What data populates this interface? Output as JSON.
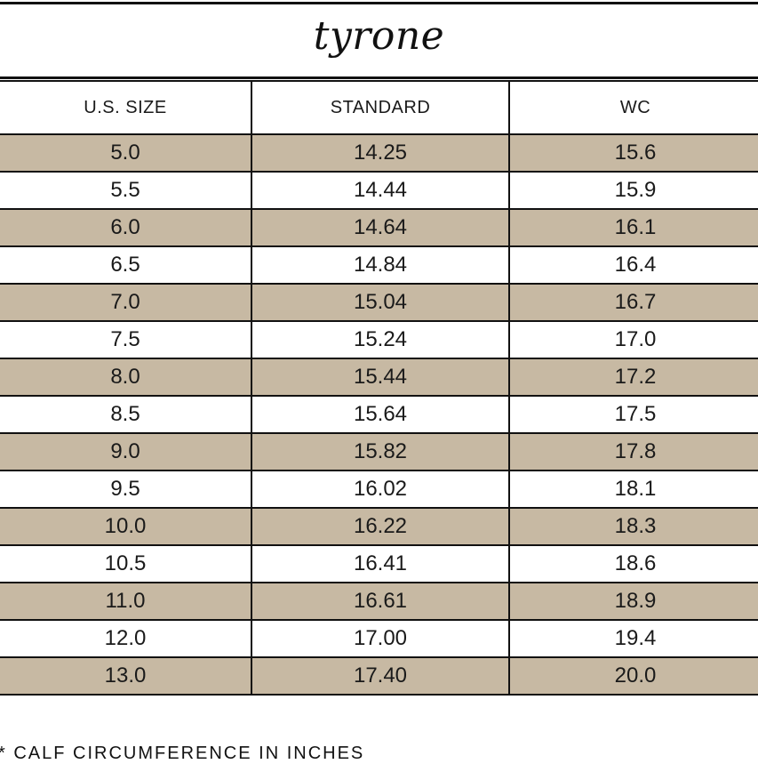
{
  "title": "tyrone",
  "headers": [
    "U.S. SIZE",
    "STANDARD",
    "WC"
  ],
  "rows": [
    [
      "5.0",
      "14.25",
      "15.6"
    ],
    [
      "5.5",
      "14.44",
      "15.9"
    ],
    [
      "6.0",
      "14.64",
      "16.1"
    ],
    [
      "6.5",
      "14.84",
      "16.4"
    ],
    [
      "7.0",
      "15.04",
      "16.7"
    ],
    [
      "7.5",
      "15.24",
      "17.0"
    ],
    [
      "8.0",
      "15.44",
      "17.2"
    ],
    [
      "8.5",
      "15.64",
      "17.5"
    ],
    [
      "9.0",
      "15.82",
      "17.8"
    ],
    [
      "9.5",
      "16.02",
      "18.1"
    ],
    [
      "10.0",
      "16.22",
      "18.3"
    ],
    [
      "10.5",
      "16.41",
      "18.6"
    ],
    [
      "11.0",
      "16.61",
      "18.9"
    ],
    [
      "12.0",
      "17.00",
      "19.4"
    ],
    [
      "13.0",
      "17.40",
      "20.0"
    ]
  ],
  "footnote": "* CALF CIRCUMFERENCE IN INCHES",
  "colors": {
    "shaded_row": "#c7b9a3",
    "border": "#111111"
  }
}
